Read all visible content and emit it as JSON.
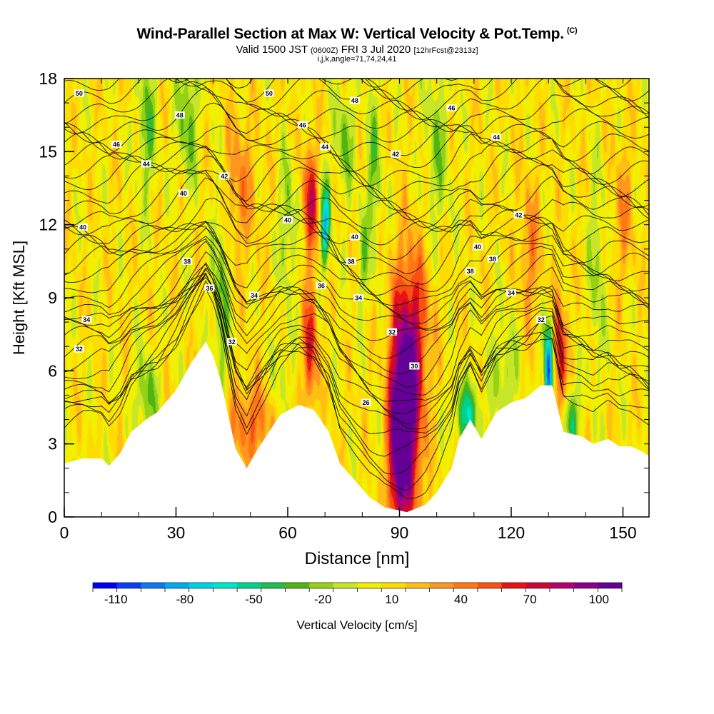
{
  "chart_data": {
    "type": "heatmap",
    "title": "Wind-Parallel Section at Max W: Vertical Velocity & Pot.Temp.",
    "title_mark": "(C)",
    "subtitle_valid": "Valid 1500 JST",
    "subtitle_z": "(0600Z)",
    "subtitle_date": "FRI 3 Jul 2020",
    "subtitle_fcst": "[12hrFcst@2313z]",
    "subtitle_2": "i,j,k,angle=71,74,24,41",
    "xlabel": "Distance [nm]",
    "ylabel": "Height [Kft MSL]",
    "xlim": [
      0,
      157
    ],
    "ylim": [
      0,
      18
    ],
    "x_ticks": [
      "0",
      "30",
      "60",
      "90",
      "120",
      "150"
    ],
    "x_tick_values": [
      0,
      30,
      60,
      90,
      120,
      150
    ],
    "y_ticks": [
      "0",
      "3",
      "6",
      "9",
      "12",
      "15",
      "18"
    ],
    "y_tick_values": [
      0,
      3,
      6,
      9,
      12,
      15,
      18
    ],
    "colorbar": {
      "label": "Vertical Velocity [cm/s]",
      "range": [
        -120,
        110
      ],
      "tick_labels": [
        "-110",
        "-80",
        "-50",
        "-20",
        "10",
        "40",
        "70",
        "100"
      ],
      "tick_values": [
        -110,
        -80,
        -50,
        -20,
        10,
        40,
        70,
        100
      ],
      "colors": [
        "#0000ee",
        "#0a3cf5",
        "#0a78f0",
        "#00aaf0",
        "#00d2e6",
        "#00e6c8",
        "#00d28c",
        "#1ebe4b",
        "#50b414",
        "#96d214",
        "#c8e628",
        "#f0f000",
        "#ffdc00",
        "#ffbe14",
        "#ff961e",
        "#ff7814",
        "#fa5014",
        "#e61414",
        "#c80a32",
        "#b4006e",
        "#8c008c",
        "#640096"
      ]
    },
    "terrain": [
      [
        0,
        2.2
      ],
      [
        5,
        2.4
      ],
      [
        10,
        2.4
      ],
      [
        12,
        2.1
      ],
      [
        15,
        2.6
      ],
      [
        18,
        3.5
      ],
      [
        22,
        4.0
      ],
      [
        25,
        4.3
      ],
      [
        30,
        5.2
      ],
      [
        34,
        6.3
      ],
      [
        38,
        7.2
      ],
      [
        40,
        6.6
      ],
      [
        42,
        5.6
      ],
      [
        44,
        4.2
      ],
      [
        46,
        2.8
      ],
      [
        49,
        2.0
      ],
      [
        52,
        2.8
      ],
      [
        55,
        3.5
      ],
      [
        58,
        4.2
      ],
      [
        63,
        4.6
      ],
      [
        67,
        4.4
      ],
      [
        71,
        3.5
      ],
      [
        74,
        2.2
      ],
      [
        78,
        1.5
      ],
      [
        82,
        0.8
      ],
      [
        86,
        0.4
      ],
      [
        92,
        0.2
      ],
      [
        97,
        0.5
      ],
      [
        100,
        1.0
      ],
      [
        104,
        2.0
      ],
      [
        106,
        3.2
      ],
      [
        109,
        4.0
      ],
      [
        112,
        3.2
      ],
      [
        116,
        4.3
      ],
      [
        120,
        4.7
      ],
      [
        124,
        4.9
      ],
      [
        128,
        5.4
      ],
      [
        131,
        5.4
      ],
      [
        134,
        3.5
      ],
      [
        139,
        3.3
      ],
      [
        142,
        3.0
      ],
      [
        146,
        3.2
      ],
      [
        149,
        2.9
      ],
      [
        152,
        2.9
      ],
      [
        155,
        2.7
      ],
      [
        157,
        2.5
      ]
    ],
    "hotspots": [
      {
        "x": 92,
        "y": 3.5,
        "w": 95,
        "sx": 2.6,
        "sy": 3.0
      },
      {
        "x": 89,
        "y": 3.0,
        "w": 75,
        "sx": 1.5,
        "sy": 2.6
      },
      {
        "x": 93,
        "y": 7.8,
        "w": 55,
        "sx": 3.5,
        "sy": 2.5
      },
      {
        "x": 66,
        "y": 7.0,
        "w": 60,
        "sx": 1.3,
        "sy": 1.8
      },
      {
        "x": 66,
        "y": 13.0,
        "w": 65,
        "sx": 1.4,
        "sy": 1.5
      },
      {
        "x": 133,
        "y": 6.5,
        "w": 65,
        "sx": 1.3,
        "sy": 1.8
      },
      {
        "x": 130,
        "y": 6.0,
        "w": -110,
        "sx": 0.9,
        "sy": 1.4
      },
      {
        "x": 70,
        "y": 12.0,
        "w": -80,
        "sx": 0.9,
        "sy": 1.2
      },
      {
        "x": 108,
        "y": 4.2,
        "w": -55,
        "sx": 2.5,
        "sy": 0.9
      },
      {
        "x": 136,
        "y": 4.0,
        "w": -50,
        "sx": 1.5,
        "sy": 1.0
      },
      {
        "x": 50,
        "y": 3.8,
        "w": 40,
        "sx": 4.0,
        "sy": 1.2
      },
      {
        "x": 22,
        "y": 5.0,
        "w": -35,
        "sx": 2.0,
        "sy": 1.2
      },
      {
        "x": 42,
        "y": 9.0,
        "w": -35,
        "sx": 1.5,
        "sy": 3.0
      },
      {
        "x": 22,
        "y": 16.0,
        "w": -35,
        "sx": 1.8,
        "sy": 2.0
      },
      {
        "x": 33,
        "y": 16.5,
        "w": -35,
        "sx": 2.0,
        "sy": 2.0
      },
      {
        "x": 47,
        "y": 13.5,
        "w": 30,
        "sx": 3.0,
        "sy": 2.0
      },
      {
        "x": 60,
        "y": 12.0,
        "w": -30,
        "sx": 1.5,
        "sy": 2.0
      },
      {
        "x": 75,
        "y": 15.5,
        "w": -30,
        "sx": 2.0,
        "sy": 1.5
      },
      {
        "x": 83,
        "y": 14.0,
        "w": -30,
        "sx": 1.5,
        "sy": 2.5
      },
      {
        "x": 100,
        "y": 15.0,
        "w": -25,
        "sx": 2.5,
        "sy": 2.5
      },
      {
        "x": 125,
        "y": 11.0,
        "w": 30,
        "sx": 2.0,
        "sy": 2.0
      },
      {
        "x": 143,
        "y": 10.0,
        "w": -25,
        "sx": 1.5,
        "sy": 3.0
      },
      {
        "x": 150,
        "y": 12.5,
        "w": 25,
        "sx": 2.0,
        "sy": 2.0
      },
      {
        "x": 80,
        "y": 10.5,
        "w": -25,
        "sx": 1.0,
        "sy": 1.5
      },
      {
        "x": 118,
        "y": 6.0,
        "w": -25,
        "sx": 2.5,
        "sy": 1.5
      },
      {
        "x": 58,
        "y": 6.0,
        "w": -20,
        "sx": 1.5,
        "sy": 1.2
      }
    ],
    "contour_labels": [
      {
        "text": "50",
        "x": 4,
        "y": 17.4
      },
      {
        "text": "48",
        "x": 31,
        "y": 16.5
      },
      {
        "text": "50",
        "x": 55,
        "y": 17.4
      },
      {
        "text": "48",
        "x": 78,
        "y": 17.1
      },
      {
        "text": "46",
        "x": 104,
        "y": 16.8
      },
      {
        "text": "46",
        "x": 14,
        "y": 15.3
      },
      {
        "text": "46",
        "x": 64,
        "y": 16.1
      },
      {
        "text": "44",
        "x": 70,
        "y": 15.2
      },
      {
        "text": "44",
        "x": 116,
        "y": 15.6
      },
      {
        "text": "44",
        "x": 22,
        "y": 14.5
      },
      {
        "text": "42",
        "x": 89,
        "y": 14.9
      },
      {
        "text": "42",
        "x": 43,
        "y": 14.0
      },
      {
        "text": "40",
        "x": 32,
        "y": 13.3
      },
      {
        "text": "42",
        "x": 122,
        "y": 12.4
      },
      {
        "text": "40",
        "x": 5,
        "y": 11.9
      },
      {
        "text": "40",
        "x": 60,
        "y": 12.2
      },
      {
        "text": "40",
        "x": 78,
        "y": 11.5
      },
      {
        "text": "40",
        "x": 111,
        "y": 11.1
      },
      {
        "text": "38",
        "x": 33,
        "y": 10.5
      },
      {
        "text": "38",
        "x": 77,
        "y": 10.5
      },
      {
        "text": "38",
        "x": 115,
        "y": 10.6
      },
      {
        "text": "38",
        "x": 109,
        "y": 10.1
      },
      {
        "text": "36",
        "x": 39,
        "y": 9.4
      },
      {
        "text": "36",
        "x": 69,
        "y": 9.5
      },
      {
        "text": "34",
        "x": 51,
        "y": 9.1
      },
      {
        "text": "34",
        "x": 79,
        "y": 9.0
      },
      {
        "text": "34",
        "x": 120,
        "y": 9.2
      },
      {
        "text": "34",
        "x": 6,
        "y": 8.1
      },
      {
        "text": "32",
        "x": 88,
        "y": 7.6
      },
      {
        "text": "32",
        "x": 128,
        "y": 8.1
      },
      {
        "text": "32",
        "x": 45,
        "y": 7.2
      },
      {
        "text": "32",
        "x": 4,
        "y": 6.9
      },
      {
        "text": "30",
        "x": 94,
        "y": 6.2
      },
      {
        "text": "26",
        "x": 81,
        "y": 4.7
      }
    ]
  }
}
